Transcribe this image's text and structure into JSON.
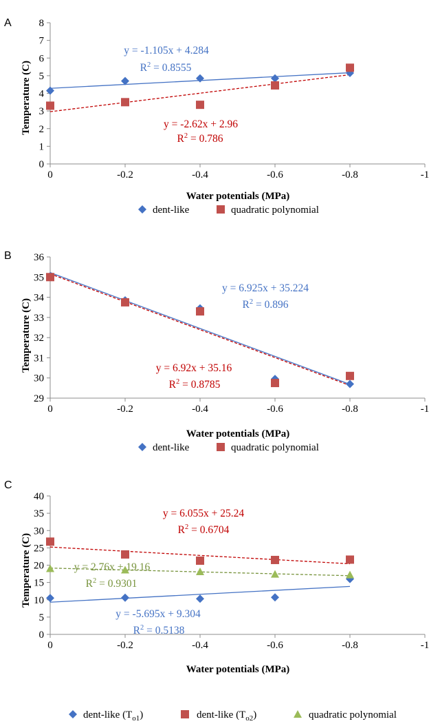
{
  "chart_data": [
    {
      "panel": "A",
      "type": "scatter",
      "xlabel": "Water potentials (MPa)",
      "ylabel": "Temperature (C)",
      "xlim": [
        0,
        -1
      ],
      "ylim": [
        0,
        8
      ],
      "x_ticks": [
        "0",
        "-0.2",
        "-0.4",
        "-0.6",
        "-0.8",
        "-1"
      ],
      "y_ticks": [
        "0",
        "1",
        "2",
        "3",
        "4",
        "5",
        "6",
        "7",
        "8"
      ],
      "grid": false,
      "legend": "bottom",
      "series": [
        {
          "name": "dent-like",
          "marker": "diamond",
          "color": "#4472C4",
          "x": [
            0,
            -0.2,
            -0.4,
            -0.6,
            -0.8
          ],
          "y": [
            4.15,
            4.7,
            4.85,
            4.85,
            5.15
          ],
          "trendline": {
            "slope": -1.105,
            "intercept": 4.284,
            "style": "solid",
            "color": "#4472C4",
            "equation": "y = -1.105x + 4.284",
            "r2_value": "0.8555"
          }
        },
        {
          "name": "quadratic polynomial",
          "marker": "square",
          "color": "#C0504D",
          "x": [
            0,
            -0.2,
            -0.4,
            -0.6,
            -0.8
          ],
          "y": [
            3.3,
            3.5,
            3.35,
            4.45,
            5.45
          ],
          "trendline": {
            "slope": -2.62,
            "intercept": 2.96,
            "style": "dashed",
            "color": "#C00000",
            "equation": "y = -2.62x + 2.96",
            "r2_value": "0.786"
          }
        }
      ]
    },
    {
      "panel": "B",
      "type": "scatter",
      "xlabel": "Water potentials (MPa)",
      "ylabel": "Temperature (C)",
      "xlim": [
        0,
        -1
      ],
      "ylim": [
        29,
        36
      ],
      "x_ticks": [
        "0",
        "-0.2",
        "-0.4",
        "-0.6",
        "-0.8",
        "-1"
      ],
      "y_ticks": [
        "29",
        "30",
        "31",
        "32",
        "33",
        "34",
        "35",
        "36"
      ],
      "grid": false,
      "legend": "bottom",
      "series": [
        {
          "name": "dent-like",
          "marker": "diamond",
          "color": "#4472C4",
          "x": [
            0,
            -0.2,
            -0.4,
            -0.6,
            -0.8
          ],
          "y": [
            35.05,
            33.85,
            33.45,
            29.95,
            29.7
          ],
          "trendline": {
            "slope": 6.925,
            "intercept": 35.224,
            "style": "solid",
            "color": "#4472C4",
            "equation": "y = 6.925x + 35.224",
            "r2_value": "0.896"
          }
        },
        {
          "name": "quadratic polynomial",
          "marker": "square",
          "color": "#C0504D",
          "x": [
            0,
            -0.2,
            -0.4,
            -0.6,
            -0.8
          ],
          "y": [
            35.0,
            33.75,
            33.3,
            29.75,
            30.1
          ],
          "trendline": {
            "slope": 6.92,
            "intercept": 35.16,
            "style": "dashed",
            "color": "#C00000",
            "equation": "y = 6.92x + 35.16",
            "r2_value": "0.8785"
          }
        }
      ]
    },
    {
      "panel": "C",
      "type": "scatter",
      "xlabel": "Water potentials (MPa)",
      "ylabel": "Temperature (C)",
      "xlim": [
        0,
        -1
      ],
      "ylim": [
        0,
        40
      ],
      "x_ticks": [
        "0",
        "-0.2",
        "-0.4",
        "-0.6",
        "-0.8",
        "-1"
      ],
      "y_ticks": [
        "0",
        "5",
        "10",
        "15",
        "20",
        "25",
        "30",
        "35",
        "40"
      ],
      "grid": false,
      "legend": "bottom",
      "series": [
        {
          "name": "dent-like (T",
          "name_subscript": "o1",
          "name_suffix": ")",
          "marker": "diamond",
          "color": "#4472C4",
          "x": [
            0,
            -0.2,
            -0.4,
            -0.6,
            -0.8
          ],
          "y": [
            10.5,
            10.6,
            10.3,
            10.7,
            16.0
          ],
          "trendline": {
            "slope": -5.695,
            "intercept": 9.304,
            "style": "solid",
            "color": "#4472C4",
            "equation": "y = -5.695x + 9.304",
            "r2_value": "0.5138"
          }
        },
        {
          "name": "dent-like (T",
          "name_subscript": "o2",
          "name_suffix": ")",
          "marker": "square",
          "color": "#C0504D",
          "x": [
            0,
            -0.2,
            -0.4,
            -0.6,
            -0.8
          ],
          "y": [
            26.8,
            23.1,
            21.3,
            21.5,
            21.6
          ],
          "trendline": {
            "slope": 6.055,
            "intercept": 25.24,
            "style": "dashed",
            "color": "#C00000",
            "equation": "y = 6.055x + 25.24",
            "r2_value": "0.6704"
          }
        },
        {
          "name": "quadratic polynomial",
          "marker": "triangle",
          "color": "#9BBB59",
          "x": [
            0,
            -0.2,
            -0.4,
            -0.6,
            -0.8
          ],
          "y": [
            19.0,
            18.6,
            18.1,
            17.4,
            17.2
          ],
          "trendline": {
            "slope": 2.76,
            "intercept": 19.16,
            "style": "dashed",
            "color": "#77933C",
            "equation": "y = 2.76x + 19.16",
            "r2_value": "0.9301"
          }
        }
      ]
    }
  ]
}
